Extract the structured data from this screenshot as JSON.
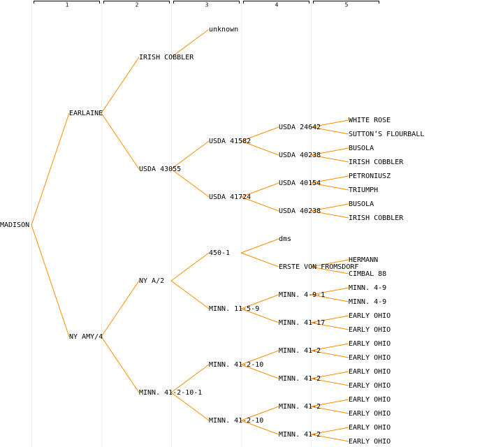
{
  "columns": [
    "1",
    "2",
    "3",
    "4",
    "5"
  ],
  "tree": {
    "label": "MADISON",
    "children": [
      {
        "label": "EARLAINE",
        "children": [
          {
            "label": "IRISH COBBLER",
            "color": "#0000cc",
            "children": [
              {
                "label": "unknown"
              }
            ]
          },
          {
            "label": "USDA 43055",
            "children": [
              {
                "label": "USDA 41582",
                "children": [
                  {
                    "label": "USDA 24642",
                    "children": [
                      {
                        "label": "WHITE ROSE"
                      },
                      {
                        "label": "SUTTON’S FLOURBALL"
                      }
                    ]
                  },
                  {
                    "label": "USDA 40238",
                    "children": [
                      {
                        "label": "BUSOLA"
                      },
                      {
                        "label": "IRISH COBBLER"
                      }
                    ]
                  }
                ]
              },
              {
                "label": "USDA 41724",
                "children": [
                  {
                    "label": "USDA 40154",
                    "children": [
                      {
                        "label": "PETRONIUSZ"
                      },
                      {
                        "label": "TRIUMPH"
                      }
                    ]
                  },
                  {
                    "label": "USDA 40238",
                    "children": [
                      {
                        "label": "BUSOLA"
                      },
                      {
                        "label": "IRISH COBBLER"
                      }
                    ]
                  }
                ]
              }
            ]
          }
        ]
      },
      {
        "label": "NY AMY/4",
        "children": [
          {
            "label": "NY A/2",
            "children": [
              {
                "label": "450-1",
                "children": [
                  {
                    "label": "dms"
                  },
                  {
                    "label": "ERSTE VON FROMSDORF",
                    "children": [
                      {
                        "label": "HERMANN"
                      },
                      {
                        "label": "CIMBAL 88"
                      }
                    ]
                  }
                ]
              },
              {
                "label": "MINN. 11-5-9",
                "children": [
                  {
                    "label": "MINN. 4-9-1",
                    "children": [
                      {
                        "label": "MINN. 4-9"
                      },
                      {
                        "label": "MINN. 4-9"
                      }
                    ]
                  },
                  {
                    "label": "MINN. 41-17",
                    "children": [
                      {
                        "label": "EARLY OHIO"
                      },
                      {
                        "label": "EARLY OHIO"
                      }
                    ]
                  }
                ]
              }
            ]
          },
          {
            "label": "MINN. 41-2-10-1",
            "children": [
              {
                "label": "MINN. 41-2-10",
                "children": [
                  {
                    "label": "MINN. 41-2",
                    "children": [
                      {
                        "label": "EARLY OHIO"
                      },
                      {
                        "label": "EARLY OHIO"
                      }
                    ]
                  },
                  {
                    "label": "MINN. 41-2",
                    "children": [
                      {
                        "label": "EARLY OHIO"
                      },
                      {
                        "label": "EARLY OHIO"
                      }
                    ]
                  }
                ]
              },
              {
                "label": "MINN. 41-2-10",
                "children": [
                  {
                    "label": "MINN. 41-2",
                    "children": [
                      {
                        "label": "EARLY OHIO"
                      },
                      {
                        "label": "EARLY OHIO"
                      }
                    ]
                  },
                  {
                    "label": "MINN. 41-2",
                    "children": [
                      {
                        "label": "EARLY OHIO"
                      },
                      {
                        "label": "EARLY OHIO"
                      }
                    ]
                  }
                ]
              }
            ]
          }
        ]
      }
    ]
  }
}
